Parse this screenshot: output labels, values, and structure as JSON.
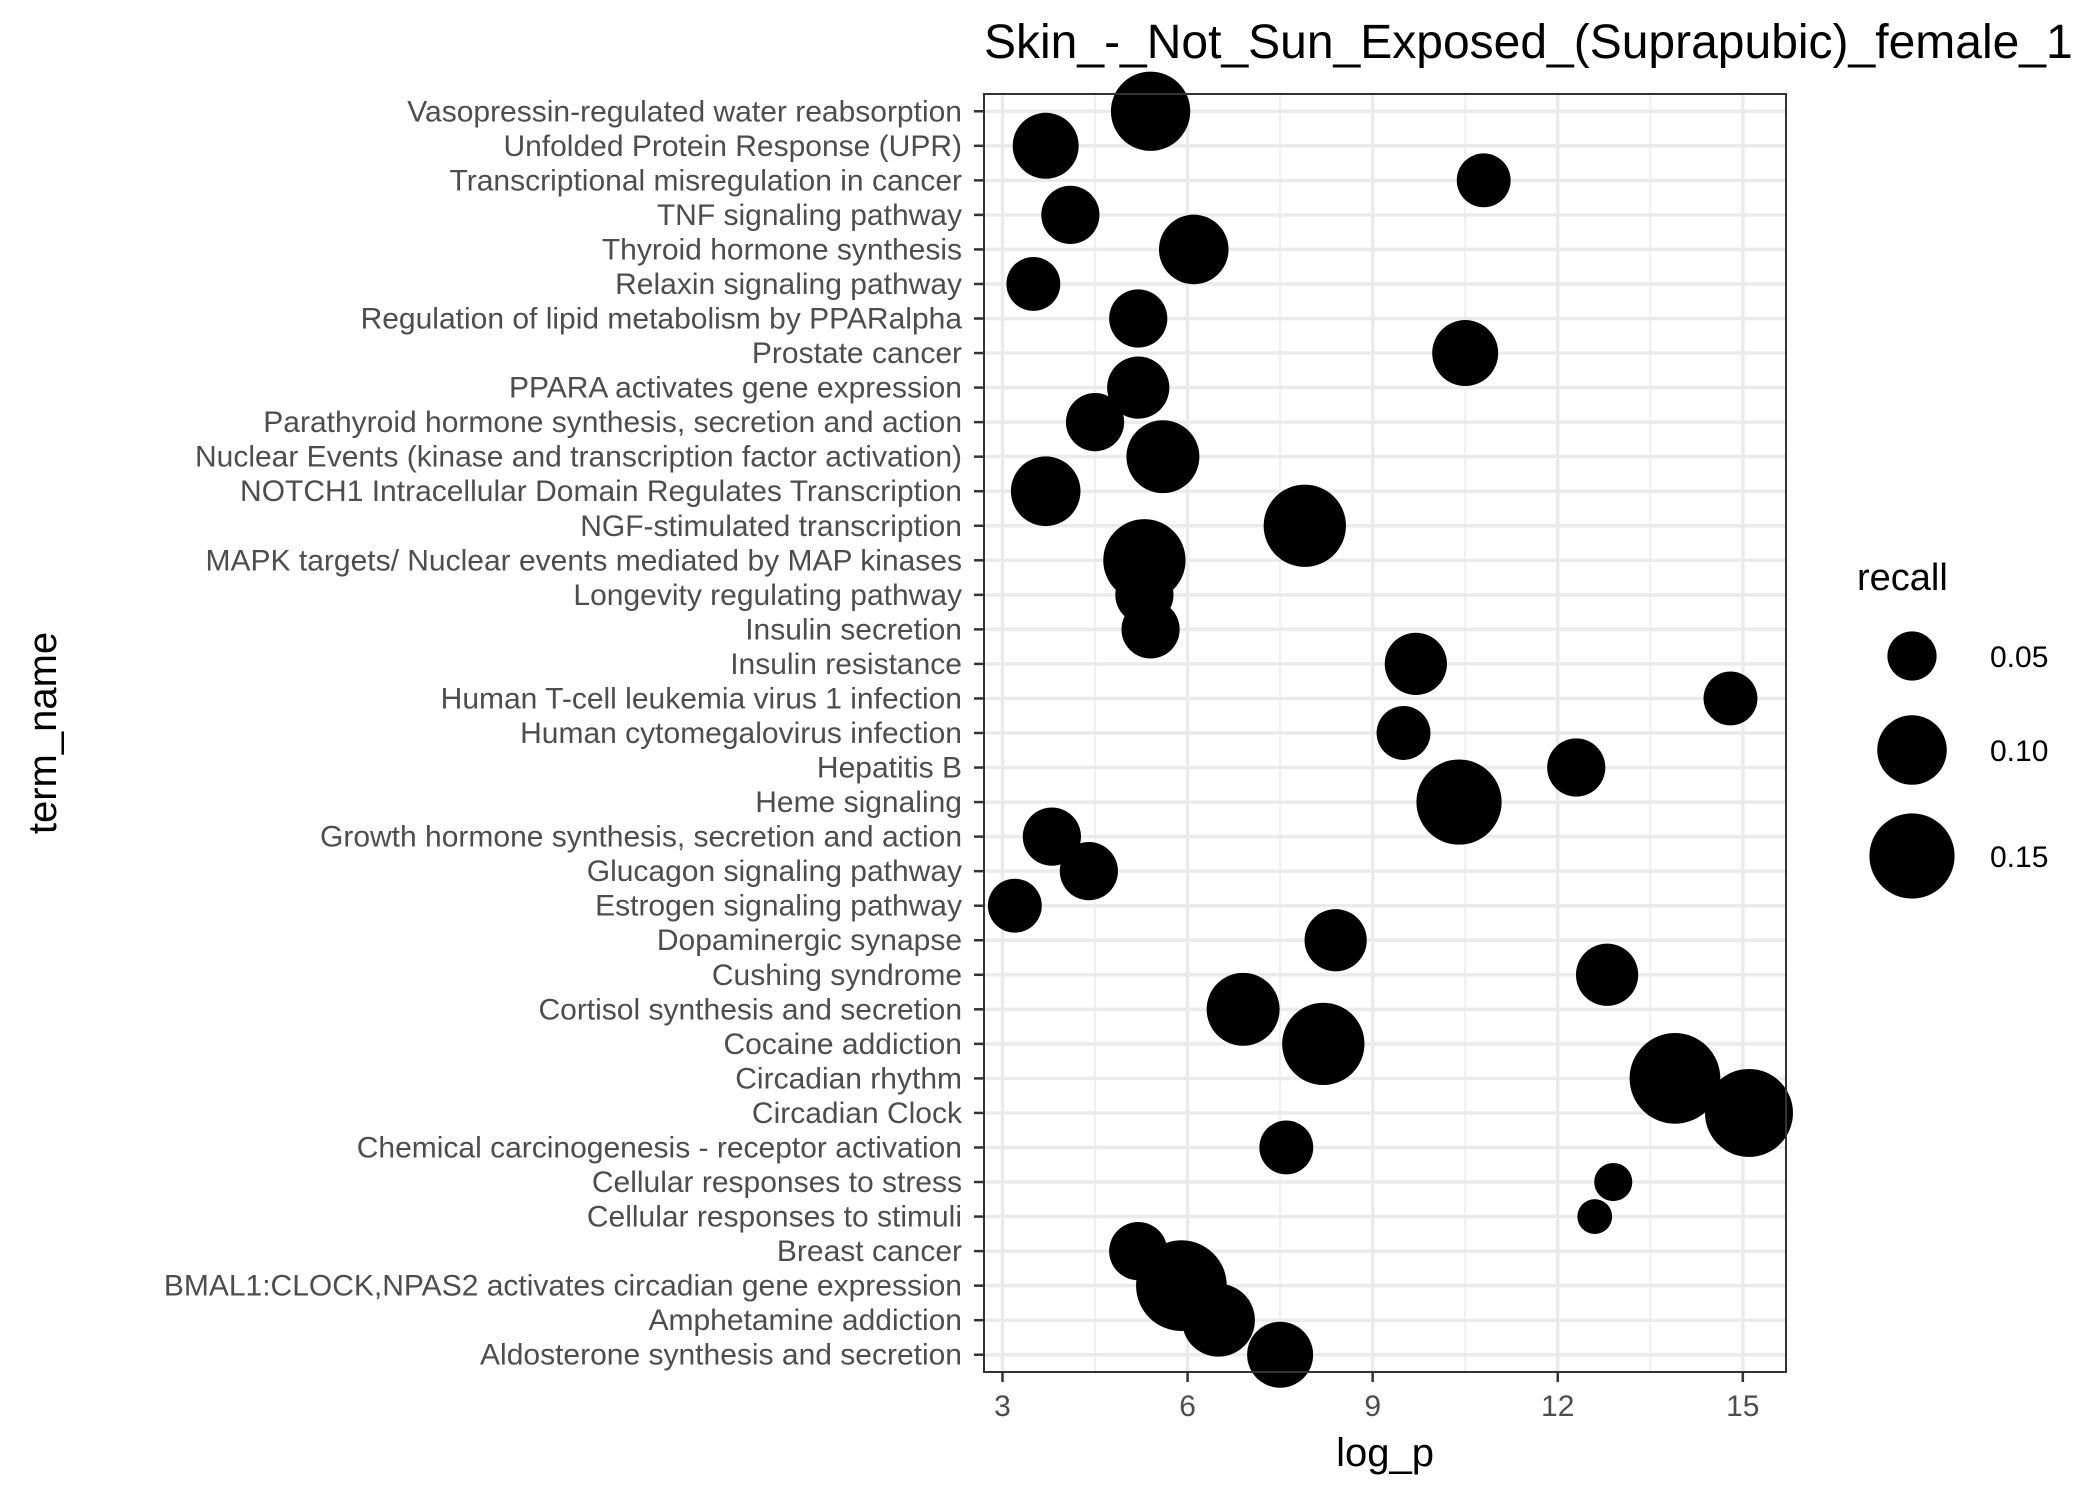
{
  "chart_data": {
    "type": "scatter",
    "title": "Skin_-_Not_Sun_Exposed_(Suprapubic)_female_1",
    "xlabel": "log_p",
    "ylabel": "term_name",
    "xlim": [
      2.7,
      15.7
    ],
    "x_ticks": [
      3,
      6,
      9,
      12,
      15
    ],
    "x_tick_labels": [
      "3",
      "6",
      "9",
      "12",
      "15"
    ],
    "grid": true,
    "legend": {
      "title": "recall",
      "position": "right",
      "entries": [
        {
          "label": "0.05",
          "value": 0.05
        },
        {
          "label": "0.10",
          "value": 0.1
        },
        {
          "label": "0.15",
          "value": 0.15
        }
      ]
    },
    "size_range": [
      0.025,
      0.17
    ],
    "points": [
      {
        "term": "Vasopressin-regulated water reabsorption",
        "log_p": 5.4,
        "recall": 0.13
      },
      {
        "term": "Unfolded Protein Response (UPR)",
        "log_p": 3.7,
        "recall": 0.09
      },
      {
        "term": "Transcriptional misregulation in cancer",
        "log_p": 10.8,
        "recall": 0.06
      },
      {
        "term": "TNF signaling pathway",
        "log_p": 4.1,
        "recall": 0.07
      },
      {
        "term": "Thyroid hormone synthesis",
        "log_p": 6.1,
        "recall": 0.1
      },
      {
        "term": "Relaxin signaling pathway",
        "log_p": 3.5,
        "recall": 0.06
      },
      {
        "term": "Regulation of lipid metabolism by PPARalpha",
        "log_p": 5.2,
        "recall": 0.07
      },
      {
        "term": "Prostate cancer",
        "log_p": 10.5,
        "recall": 0.09
      },
      {
        "term": "PPARA activates gene expression",
        "log_p": 5.2,
        "recall": 0.08
      },
      {
        "term": "Parathyroid hormone synthesis, secretion and action",
        "log_p": 4.5,
        "recall": 0.07
      },
      {
        "term": "Nuclear Events (kinase and transcription factor activation)",
        "log_p": 5.6,
        "recall": 0.11
      },
      {
        "term": "NOTCH1 Intracellular Domain Regulates Transcription",
        "log_p": 3.7,
        "recall": 0.1
      },
      {
        "term": "NGF-stimulated transcription",
        "log_p": 7.9,
        "recall": 0.14
      },
      {
        "term": "MAPK targets/ Nuclear events mediated by MAP kinases",
        "log_p": 5.3,
        "recall": 0.14
      },
      {
        "term": "Longevity regulating pathway",
        "log_p": 5.3,
        "recall": 0.07
      },
      {
        "term": "Insulin secretion",
        "log_p": 5.4,
        "recall": 0.07
      },
      {
        "term": "Insulin resistance",
        "log_p": 9.7,
        "recall": 0.08
      },
      {
        "term": "Human T-cell leukemia virus 1 infection",
        "log_p": 14.8,
        "recall": 0.06
      },
      {
        "term": "Human cytomegalovirus infection",
        "log_p": 9.5,
        "recall": 0.06
      },
      {
        "term": "Hepatitis B",
        "log_p": 12.3,
        "recall": 0.07
      },
      {
        "term": "Heme signaling",
        "log_p": 10.4,
        "recall": 0.15
      },
      {
        "term": "Growth hormone synthesis, secretion and action",
        "log_p": 3.8,
        "recall": 0.07
      },
      {
        "term": "Glucagon signaling pathway",
        "log_p": 4.4,
        "recall": 0.07
      },
      {
        "term": "Estrogen signaling pathway",
        "log_p": 3.2,
        "recall": 0.06
      },
      {
        "term": "Dopaminergic synapse",
        "log_p": 8.4,
        "recall": 0.08
      },
      {
        "term": "Cushing syndrome",
        "log_p": 12.8,
        "recall": 0.08
      },
      {
        "term": "Cortisol synthesis and secretion",
        "log_p": 6.9,
        "recall": 0.11
      },
      {
        "term": "Cocaine addiction",
        "log_p": 8.2,
        "recall": 0.14
      },
      {
        "term": "Circadian rhythm",
        "log_p": 13.9,
        "recall": 0.17
      },
      {
        "term": "Circadian Clock",
        "log_p": 15.1,
        "recall": 0.16
      },
      {
        "term": "Chemical carcinogenesis - receptor activation",
        "log_p": 7.6,
        "recall": 0.06
      },
      {
        "term": "Cellular responses to stress",
        "log_p": 12.9,
        "recall": 0.03
      },
      {
        "term": "Cellular responses to stimuli",
        "log_p": 12.6,
        "recall": 0.025
      },
      {
        "term": "Breast cancer",
        "log_p": 5.2,
        "recall": 0.07
      },
      {
        "term": "BMAL1:CLOCK,NPAS2 activates circadian gene expression",
        "log_p": 5.9,
        "recall": 0.17
      },
      {
        "term": "Amphetamine addiction",
        "log_p": 6.5,
        "recall": 0.11
      },
      {
        "term": "Aldosterone synthesis and secretion",
        "log_p": 7.5,
        "recall": 0.09
      }
    ]
  }
}
